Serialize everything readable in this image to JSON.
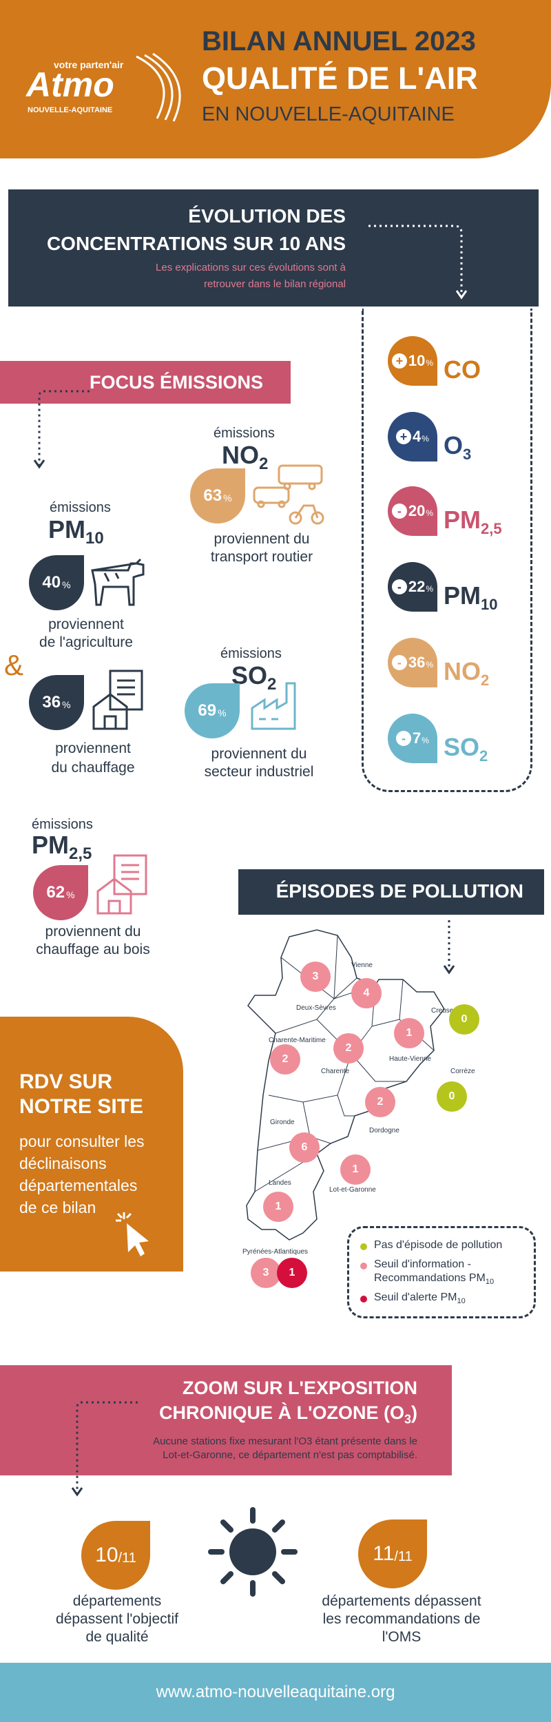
{
  "header": {
    "logo_tagline": "votre parten'air",
    "logo_name": "Atmo",
    "logo_region": "NOUVELLE-AQUITAINE",
    "title_line1": "BILAN ANNUEL 2023",
    "title_line2": "QUALITÉ DE L'AIR",
    "title_line3": "EN NOUVELLE-AQUITAINE"
  },
  "evolution": {
    "title_line1": "ÉVOLUTION DES",
    "title_line2": "CONCENTRATIONS SUR 10 ANS",
    "note_line1": "Les explications sur ces évolutions sont à",
    "note_line2": "retrouver dans le bilan régional",
    "items": [
      {
        "sign": "+",
        "value": "10",
        "unit": "%",
        "pollutant": "CO",
        "sub": "",
        "color": "#d1791b"
      },
      {
        "sign": "+",
        "value": "4",
        "unit": "%",
        "pollutant": "O",
        "sub": "3",
        "color": "#2d4a7c"
      },
      {
        "sign": "-",
        "value": "20",
        "unit": "%",
        "pollutant": "PM",
        "sub": "2,5",
        "color": "#c9546e"
      },
      {
        "sign": "-",
        "value": "22",
        "unit": "%",
        "pollutant": "PM",
        "sub": "10",
        "color": "#2d3a4a"
      },
      {
        "sign": "-",
        "value": "36",
        "unit": "%",
        "pollutant": "NO",
        "sub": "2",
        "color": "#dfa66c"
      },
      {
        "sign": "-",
        "value": "7",
        "unit": "%",
        "pollutant": "SO",
        "sub": "2",
        "color": "#6cb6cc"
      }
    ]
  },
  "focus": {
    "title": "FOCUS ÉMISSIONS",
    "emissions_label": "émissions",
    "no2": {
      "name": "NO",
      "sub": "2",
      "value": "63",
      "unit": "%",
      "desc_line1": "proviennent du",
      "desc_line2": "transport routier",
      "icon": "vehicles-icon"
    },
    "pm10": {
      "name": "PM",
      "sub": "10",
      "value": "40",
      "unit": "%",
      "desc_line1": "proviennent",
      "desc_line2": "de l'agriculture",
      "icon": "cow-icon"
    },
    "amp": "&",
    "pm10_b": {
      "value": "36",
      "unit": "%",
      "desc_line1": "proviennent",
      "desc_line2": "du chauffage",
      "icon": "house-doc-icon"
    },
    "so2": {
      "name": "SO",
      "sub": "2",
      "value": "69",
      "unit": "%",
      "desc_line1": "proviennent du",
      "desc_line2": "secteur industriel",
      "icon": "factory-icon"
    },
    "pm25": {
      "name": "PM",
      "sub": "2,5",
      "value": "62",
      "unit": "%",
      "desc_line1": "proviennent du",
      "desc_line2": "chauffage au bois",
      "icon": "house-doc-icon"
    }
  },
  "episodes": {
    "title": "ÉPISODES DE POLLUTION",
    "departments": [
      {
        "name": "Deux-Sèvres",
        "count": "3",
        "type": "info"
      },
      {
        "name": "Vienne",
        "count": "4",
        "type": "info"
      },
      {
        "name": "Charente-Maritime",
        "count": "2",
        "type": "info"
      },
      {
        "name": "Charente",
        "count": "2",
        "type": "info"
      },
      {
        "name": "Haute-Vienne",
        "count": "1",
        "type": "info"
      },
      {
        "name": "Creuse",
        "count": "0",
        "type": "none"
      },
      {
        "name": "Corrèze",
        "count": "0",
        "type": "none"
      },
      {
        "name": "Dordogne",
        "count": "2",
        "type": "info"
      },
      {
        "name": "Gironde",
        "count": "6",
        "type": "info"
      },
      {
        "name": "Lot-et-Garonne",
        "count": "1",
        "type": "info"
      },
      {
        "name": "Landes",
        "count": "1",
        "type": "info"
      },
      {
        "name": "Pyrénées-Atlantiques",
        "count": "3",
        "type": "info"
      },
      {
        "name": "Pyrénées-Atlantiques alerte",
        "count": "1",
        "type": "alert"
      }
    ],
    "legend": {
      "none": "Pas d'épisode de pollution",
      "info_line1": "Seuil d'information -",
      "info_line2": "Recommandations PM",
      "info_sub": "10",
      "alert": "Seuil d'alerte PM",
      "alert_sub": "10"
    },
    "colors": {
      "none": "#b5c51c",
      "info": "#ef8e98",
      "alert": "#d40f3c"
    }
  },
  "rdv": {
    "title_line1": "RDV SUR",
    "title_line2": "NOTRE SITE",
    "text_line1": "pour consulter les",
    "text_line2": "déclinaisons",
    "text_line3": "départementales",
    "text_line4": "de ce bilan",
    "icon": "cursor-click-icon"
  },
  "ozone": {
    "title_line1": "ZOOM SUR L'EXPOSITION",
    "title_line2": "CHRONIQUE À L'OZONE (O",
    "title_sub": "3",
    "title_end": ")",
    "note_line1": "Aucune stations fixe mesurant l'O3 étant présente dans le",
    "note_line2": "Lot-et-Garonne, ce département n'est pas comptabilisé.",
    "left": {
      "value": "10",
      "denom": "/11",
      "desc_line1": "départements",
      "desc_line2": "dépassent l'objectif",
      "desc_line3": "de qualité"
    },
    "right": {
      "value": "11",
      "denom": "/11",
      "desc_line1": "départements dépassent",
      "desc_line2": "les recommandations de",
      "desc_line3": "l'OMS"
    },
    "icon": "sun-icon"
  },
  "footer": {
    "url": "www.atmo-nouvelleaquitaine.org"
  },
  "colors": {
    "orange": "#d1791b",
    "navy": "#2d3a4a",
    "pink": "#c9546e",
    "blue_footer": "#6cb6cc"
  }
}
